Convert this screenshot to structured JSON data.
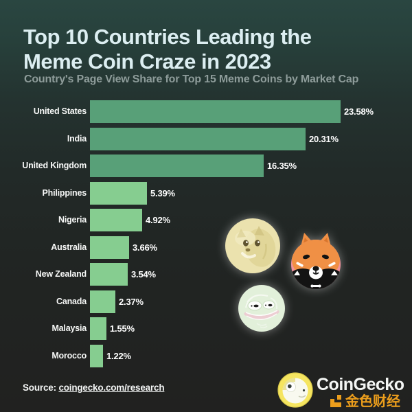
{
  "header": {
    "title_line1": "Top 10 Countries Leading the",
    "title_line2": "Meme Coin Craze in 2023",
    "subtitle": "Country's Page View Share for Top 15 Meme Coins by Market Cap"
  },
  "chart_data": {
    "type": "bar",
    "orientation": "horizontal",
    "title": "Top 10 Countries Leading the Meme Coin Craze in 2023",
    "subtitle": "Country's Page View Share for Top 15 Meme Coins by Market Cap",
    "categories": [
      "United States",
      "India",
      "United Kingdom",
      "Philippines",
      "Nigeria",
      "Australia",
      "New Zealand",
      "Canada",
      "Malaysia",
      "Morocco"
    ],
    "values": [
      23.58,
      20.31,
      16.35,
      5.39,
      4.92,
      3.66,
      3.54,
      2.37,
      1.55,
      1.22
    ],
    "value_labels": [
      "23.58%",
      "20.31%",
      "16.35%",
      "5.39%",
      "4.92%",
      "3.66%",
      "3.54%",
      "2.37%",
      "1.55%",
      "1.22%"
    ],
    "bar_colors": [
      "#58a078",
      "#58a078",
      "#58a078",
      "#86cd90",
      "#86cd90",
      "#86cd90",
      "#86cd90",
      "#86cd90",
      "#86cd90",
      "#86cd90"
    ],
    "xlim": [
      0,
      23.58
    ],
    "unit": "%",
    "grid": false,
    "legend": "none",
    "decorative_icons": [
      "dogecoin-icon",
      "shiba-inu-coin-icon",
      "pepe-coin-icon"
    ]
  },
  "footer": {
    "source_label": "Source:",
    "source_link": "coingecko.com/research",
    "brand_name": "CoinGecko",
    "watermark_text": "金色财经"
  },
  "colors": {
    "background_top": "#2a4641",
    "background_bottom": "#212120",
    "bar_primary": "#58a078",
    "bar_secondary": "#86cd90",
    "title_text": "#dceef1",
    "subtitle_text": "#8e9c9a",
    "label_text": "#ffffff",
    "watermark_orange": "#f7a51c",
    "gecko_yellow": "#f5e560",
    "doge_cream": "#ebe2ae",
    "shiba_pink": "#f2939e",
    "shiba_orange": "#f09045",
    "pepe_mint": "#e2f0da"
  }
}
